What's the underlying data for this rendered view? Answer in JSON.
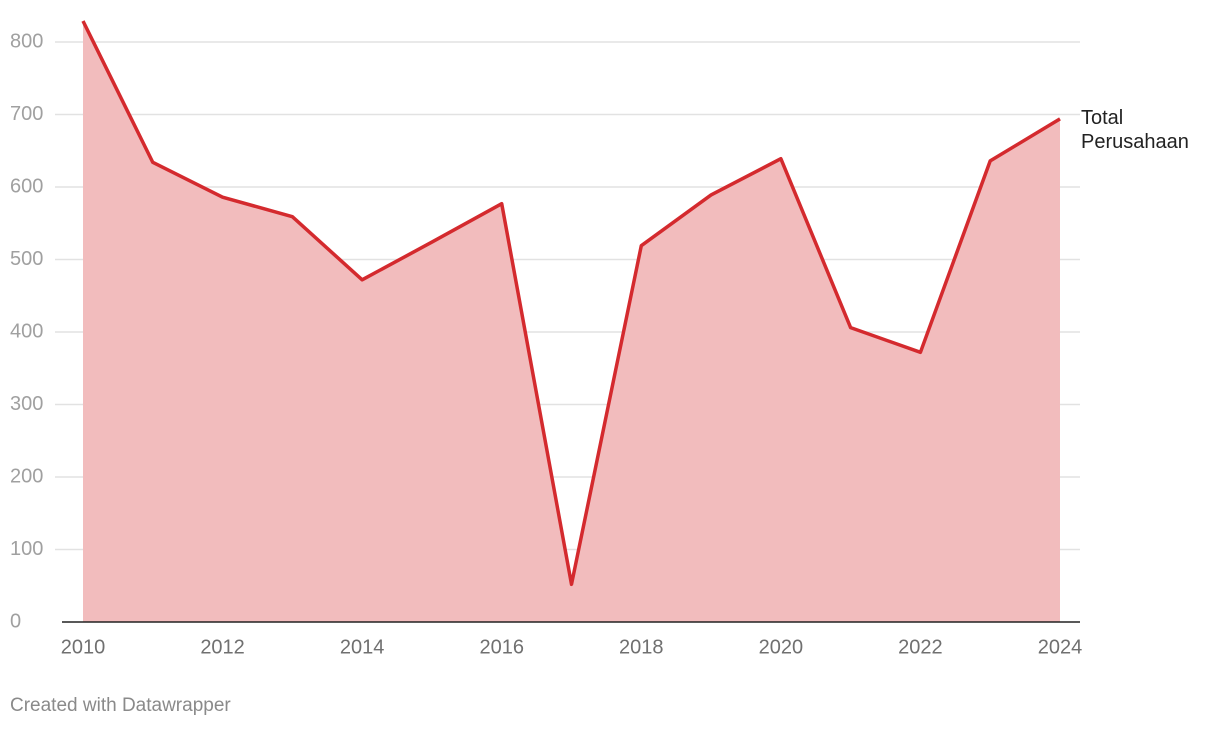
{
  "chart_data": {
    "type": "area",
    "x": [
      2010,
      2011,
      2012,
      2013,
      2014,
      2015,
      2016,
      2017,
      2018,
      2019,
      2020,
      2021,
      2022,
      2023,
      2024
    ],
    "series": [
      {
        "name": "Total Perusahaan",
        "color": "#d42a2e",
        "fill": "#f2bcbd",
        "values": [
          829,
          634,
          586,
          559,
          472,
          524,
          577,
          52,
          519,
          589,
          639,
          406,
          372,
          636,
          694
        ]
      }
    ],
    "xlim": [
      2010,
      2024
    ],
    "xticks": [
      2010,
      2012,
      2014,
      2016,
      2018,
      2020,
      2022,
      2024
    ],
    "ylim": [
      0,
      800
    ],
    "yticks": [
      0,
      100,
      200,
      300,
      400,
      500,
      600,
      700,
      800
    ],
    "grid": true,
    "credit": "Created with Datawrapper"
  }
}
